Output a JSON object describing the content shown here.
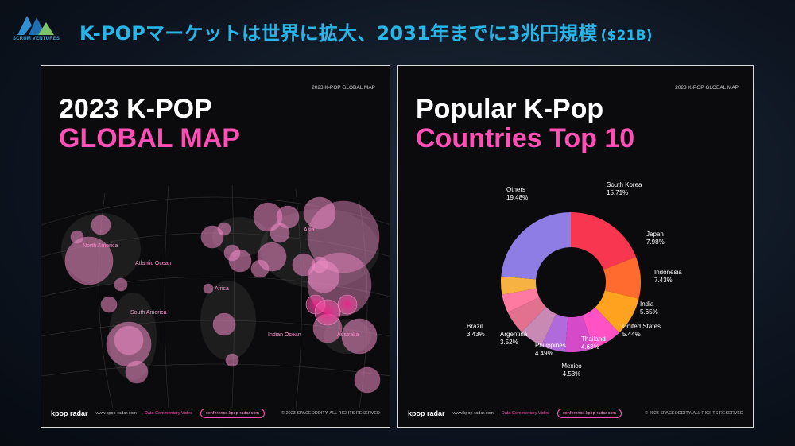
{
  "header": {
    "logo_text": "SCRUM VENTURES",
    "title": "K-POPマーケットは世界に拡大、2031年までに3兆円規模",
    "title_suffix": "($21B)"
  },
  "left_panel": {
    "tag": "2023 K-POP GLOBAL MAP",
    "title_line1": "2023 K-POP",
    "title_line2": "GLOBAL MAP",
    "map_labels": {
      "north_america": "North America",
      "atlantic": "Atlantic Ocean",
      "africa": "Africa",
      "south_america": "South America",
      "asia": "Asia",
      "indian": "Indian Ocean",
      "australia": "Australia"
    }
  },
  "right_panel": {
    "tag": "2023 K-POP GLOBAL MAP",
    "title_line1": "Popular K-Pop",
    "title_line2": "Countries Top 10"
  },
  "footer": {
    "brand": "kpop radar",
    "site": "www.kpop-radar.com",
    "video_label": "Data Commentary Video",
    "pill": "conference.kpop-radar.com",
    "copyright": "© 2023 SPACEODDITY. ALL RIGHTS RESERVED"
  },
  "colors": {
    "pink": "#ff4fb6",
    "headline": "#29b5e8",
    "panel_bg": "#0b0b0d"
  },
  "chart_data": {
    "type": "pie",
    "title": "Popular K-Pop Countries Top 10",
    "categories": [
      "South Korea",
      "Japan",
      "Indonesia",
      "India",
      "United States",
      "Thailand",
      "Mexico",
      "Philippines",
      "Argentina",
      "Brazil",
      "Others"
    ],
    "values": [
      15.71,
      7.98,
      7.43,
      5.65,
      5.44,
      4.63,
      4.53,
      4.49,
      3.52,
      3.43,
      19.48
    ],
    "labels": [
      "15.71%",
      "7.98%",
      "7.43%",
      "5.65%",
      "5.44%",
      "4.63%",
      "4.53%",
      "4.49%",
      "3.52%",
      "3.43%",
      "19.48%"
    ],
    "colors": [
      "#f8364f",
      "#ff6a2e",
      "#ffa21f",
      "#ff52c4",
      "#d54ac9",
      "#b16adc",
      "#c88ab4",
      "#e2708f",
      "#ff7aa0",
      "#f7b244",
      "#8f7de6"
    ]
  }
}
